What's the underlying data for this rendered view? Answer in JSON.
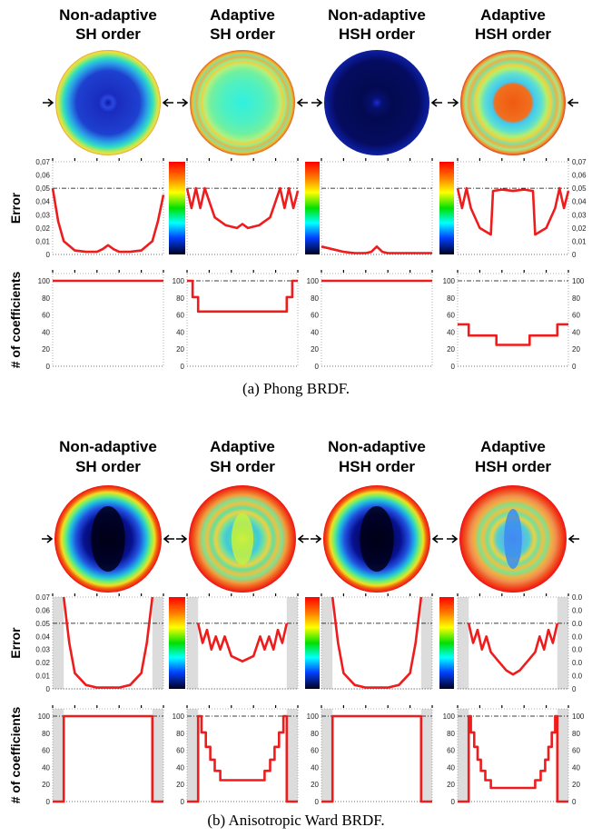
{
  "panels": [
    {
      "caption": "(a)  Phong BRDF.",
      "columns": [
        {
          "line1": "Non-adaptive",
          "line2": "SH order"
        },
        {
          "line1": "Adaptive",
          "line2": "SH order"
        },
        {
          "line1": "Non-adaptive",
          "line2": "HSH order"
        },
        {
          "line1": "Adaptive",
          "line2": "HSH order"
        }
      ],
      "error_label": "Error",
      "coef_label": "# of coefficients",
      "error_ticks": [
        "0,07",
        "0,06",
        "0,05",
        "0,04",
        "0,03",
        "0,02",
        "0,01",
        "0"
      ],
      "error_ticks_right": [
        "0,07",
        "0,06",
        "0,05",
        "0,04",
        "0,03",
        "0,02",
        "0,01",
        "0"
      ],
      "coef_ticks": [
        "100",
        "80",
        "60",
        "40",
        "20",
        "0"
      ]
    },
    {
      "caption": "(b)  Anisotropic Ward BRDF.",
      "columns": [
        {
          "line1": "Non-adaptive",
          "line2": "SH order"
        },
        {
          "line1": "Adaptive",
          "line2": "SH order"
        },
        {
          "line1": "Non-adaptive",
          "line2": "HSH order"
        },
        {
          "line1": "Adaptive",
          "line2": "HSH order"
        }
      ],
      "error_label": "Error",
      "coef_label": "# of coefficients",
      "error_ticks": [
        "0.07",
        "0.06",
        "0.05",
        "0.04",
        "0.03",
        "0.02",
        "0.01",
        "0"
      ],
      "error_ticks_right": [
        "0.0",
        "0.0",
        "0.0",
        "0.0",
        "0.0",
        "0.0",
        "0.0",
        "0"
      ],
      "coef_ticks": [
        "100",
        "80",
        "60",
        "40",
        "20",
        "0"
      ]
    }
  ],
  "chart_data": [
    {
      "type": "line",
      "title": "Phong BRDF — Error",
      "ylim": [
        0,
        0.07
      ],
      "threshold": 0.05,
      "series": [
        {
          "name": "Non-adaptive SH order",
          "x": [
            0,
            0.05,
            0.1,
            0.2,
            0.3,
            0.4,
            0.45,
            0.5,
            0.55,
            0.6,
            0.7,
            0.8,
            0.9,
            0.95,
            1
          ],
          "values": [
            0.05,
            0.025,
            0.01,
            0.003,
            0.002,
            0.002,
            0.004,
            0.007,
            0.004,
            0.002,
            0.002,
            0.003,
            0.01,
            0.025,
            0.045
          ]
        },
        {
          "name": "Adaptive SH order",
          "x": [
            0,
            0.04,
            0.08,
            0.12,
            0.16,
            0.25,
            0.35,
            0.45,
            0.5,
            0.55,
            0.65,
            0.75,
            0.84,
            0.88,
            0.92,
            0.96,
            1
          ],
          "values": [
            0.05,
            0.035,
            0.05,
            0.035,
            0.05,
            0.028,
            0.022,
            0.02,
            0.023,
            0.02,
            0.022,
            0.028,
            0.05,
            0.035,
            0.05,
            0.035,
            0.048
          ]
        },
        {
          "name": "Non-adaptive HSH order",
          "x": [
            0,
            0.1,
            0.2,
            0.3,
            0.4,
            0.45,
            0.5,
            0.55,
            0.6,
            0.7,
            0.8,
            0.9,
            1
          ],
          "values": [
            0.006,
            0.004,
            0.002,
            0.001,
            0.001,
            0.002,
            0.006,
            0.002,
            0.001,
            0.001,
            0.001,
            0.001,
            0.001
          ]
        },
        {
          "name": "Adaptive HSH order",
          "x": [
            0,
            0.04,
            0.08,
            0.12,
            0.2,
            0.3,
            0.32,
            0.4,
            0.5,
            0.6,
            0.68,
            0.7,
            0.8,
            0.88,
            0.92,
            0.96,
            1
          ],
          "values": [
            0.05,
            0.035,
            0.05,
            0.035,
            0.02,
            0.015,
            0.048,
            0.049,
            0.048,
            0.049,
            0.048,
            0.015,
            0.02,
            0.035,
            0.05,
            0.035,
            0.048
          ]
        }
      ]
    },
    {
      "type": "line",
      "title": "Phong BRDF — # of coefficients",
      "ylim": [
        0,
        100
      ],
      "series": [
        {
          "name": "Non-adaptive SH order",
          "x": [
            0,
            1
          ],
          "values": [
            100,
            100
          ]
        },
        {
          "name": "Adaptive SH order",
          "x": [
            0,
            0.05,
            0.05,
            0.1,
            0.1,
            0.9,
            0.9,
            0.95,
            0.95,
            1
          ],
          "values": [
            100,
            100,
            81,
            81,
            64,
            64,
            81,
            81,
            100,
            100
          ]
        },
        {
          "name": "Non-adaptive HSH order",
          "x": [
            0,
            1
          ],
          "values": [
            100,
            100
          ]
        },
        {
          "name": "Adaptive HSH order",
          "x": [
            0,
            0.1,
            0.1,
            0.35,
            0.35,
            0.65,
            0.65,
            0.9,
            0.9,
            1
          ],
          "values": [
            49,
            49,
            36,
            36,
            25,
            25,
            36,
            36,
            49,
            49
          ]
        }
      ]
    },
    {
      "type": "line",
      "title": "Anisotropic Ward BRDF — Error",
      "ylim": [
        0,
        0.07
      ],
      "threshold": 0.05,
      "series": [
        {
          "name": "Non-adaptive SH order",
          "x": [
            0.1,
            0.15,
            0.2,
            0.3,
            0.4,
            0.5,
            0.6,
            0.7,
            0.8,
            0.85,
            0.9
          ],
          "values": [
            0.07,
            0.035,
            0.012,
            0.003,
            0.001,
            0.001,
            0.001,
            0.003,
            0.012,
            0.035,
            0.07
          ]
        },
        {
          "name": "Adaptive SH order",
          "x": [
            0.1,
            0.14,
            0.18,
            0.22,
            0.26,
            0.3,
            0.34,
            0.4,
            0.5,
            0.6,
            0.66,
            0.7,
            0.74,
            0.78,
            0.82,
            0.86,
            0.9
          ],
          "values": [
            0.05,
            0.035,
            0.045,
            0.03,
            0.04,
            0.03,
            0.04,
            0.025,
            0.021,
            0.025,
            0.04,
            0.03,
            0.04,
            0.03,
            0.045,
            0.035,
            0.05
          ]
        },
        {
          "name": "Non-adaptive HSH order",
          "x": [
            0.1,
            0.15,
            0.2,
            0.3,
            0.4,
            0.5,
            0.6,
            0.7,
            0.8,
            0.85,
            0.9
          ],
          "values": [
            0.07,
            0.035,
            0.012,
            0.003,
            0.001,
            0.001,
            0.001,
            0.003,
            0.012,
            0.035,
            0.07
          ]
        },
        {
          "name": "Adaptive HSH order",
          "x": [
            0.1,
            0.14,
            0.18,
            0.22,
            0.26,
            0.3,
            0.36,
            0.44,
            0.5,
            0.56,
            0.64,
            0.7,
            0.74,
            0.78,
            0.82,
            0.86,
            0.9
          ],
          "values": [
            0.05,
            0.035,
            0.045,
            0.03,
            0.04,
            0.028,
            0.022,
            0.014,
            0.011,
            0.014,
            0.022,
            0.028,
            0.04,
            0.03,
            0.045,
            0.035,
            0.05
          ]
        }
      ]
    },
    {
      "type": "line",
      "title": "Anisotropic Ward BRDF — # of coefficients",
      "ylim": [
        0,
        100
      ],
      "series": [
        {
          "name": "Non-adaptive SH order",
          "x": [
            0,
            0.1,
            0.1,
            0.9,
            0.9,
            1
          ],
          "values": [
            0,
            0,
            100,
            100,
            0,
            0
          ]
        },
        {
          "name": "Adaptive SH order",
          "x": [
            0,
            0.1,
            0.1,
            0.13,
            0.13,
            0.17,
            0.17,
            0.21,
            0.21,
            0.25,
            0.25,
            0.3,
            0.3,
            0.7,
            0.7,
            0.75,
            0.75,
            0.79,
            0.79,
            0.83,
            0.83,
            0.87,
            0.87,
            0.9,
            0.9,
            1
          ],
          "values": [
            0,
            0,
            100,
            100,
            81,
            81,
            64,
            64,
            49,
            49,
            36,
            36,
            25,
            25,
            36,
            36,
            49,
            49,
            64,
            64,
            81,
            81,
            100,
            100,
            0,
            0
          ]
        },
        {
          "name": "Non-adaptive HSH order",
          "x": [
            0,
            0.1,
            0.1,
            0.9,
            0.9,
            1
          ],
          "values": [
            0,
            0,
            100,
            100,
            0,
            0
          ]
        },
        {
          "name": "Adaptive HSH order",
          "x": [
            0,
            0.1,
            0.1,
            0.12,
            0.12,
            0.15,
            0.15,
            0.18,
            0.18,
            0.21,
            0.21,
            0.25,
            0.25,
            0.3,
            0.3,
            0.7,
            0.7,
            0.75,
            0.75,
            0.79,
            0.79,
            0.82,
            0.82,
            0.85,
            0.85,
            0.88,
            0.88,
            0.9,
            0.9,
            1
          ],
          "values": [
            0,
            0,
            100,
            100,
            81,
            81,
            64,
            64,
            49,
            49,
            36,
            36,
            25,
            25,
            16,
            16,
            25,
            25,
            36,
            36,
            49,
            49,
            64,
            64,
            81,
            81,
            100,
            100,
            0,
            0
          ]
        }
      ]
    }
  ],
  "colors": {
    "line": "#ee1c1c",
    "shade": "#dcdcdc",
    "text": "#000000"
  }
}
